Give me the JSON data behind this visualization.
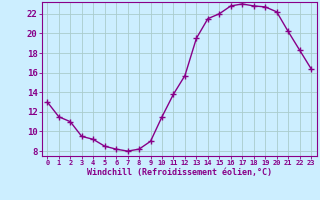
{
  "x": [
    0,
    1,
    2,
    3,
    4,
    5,
    6,
    7,
    8,
    9,
    10,
    11,
    12,
    13,
    14,
    15,
    16,
    17,
    18,
    19,
    20,
    21,
    22,
    23
  ],
  "y": [
    13.0,
    11.5,
    11.0,
    9.5,
    9.2,
    8.5,
    8.2,
    8.0,
    8.2,
    9.0,
    11.5,
    13.8,
    15.7,
    19.5,
    21.5,
    22.0,
    22.8,
    23.0,
    22.8,
    22.7,
    22.2,
    20.2,
    18.3,
    16.4
  ],
  "line_color": "#880088",
  "marker": "+",
  "marker_size": 4,
  "bg_color": "#cceeff",
  "grid_color": "#aacccc",
  "axis_color": "#880088",
  "xlabel": "Windchill (Refroidissement éolien,°C)",
  "xlim": [
    -0.5,
    23.5
  ],
  "ylim": [
    7.5,
    23.2
  ],
  "yticks": [
    8,
    10,
    12,
    14,
    16,
    18,
    20,
    22
  ],
  "xticks": [
    0,
    1,
    2,
    3,
    4,
    5,
    6,
    7,
    8,
    9,
    10,
    11,
    12,
    13,
    14,
    15,
    16,
    17,
    18,
    19,
    20,
    21,
    22,
    23
  ],
  "xlabel_fontsize": 6.0,
  "tick_fontsize": 6.5,
  "xtick_fontsize": 5.0,
  "line_width": 1.0
}
